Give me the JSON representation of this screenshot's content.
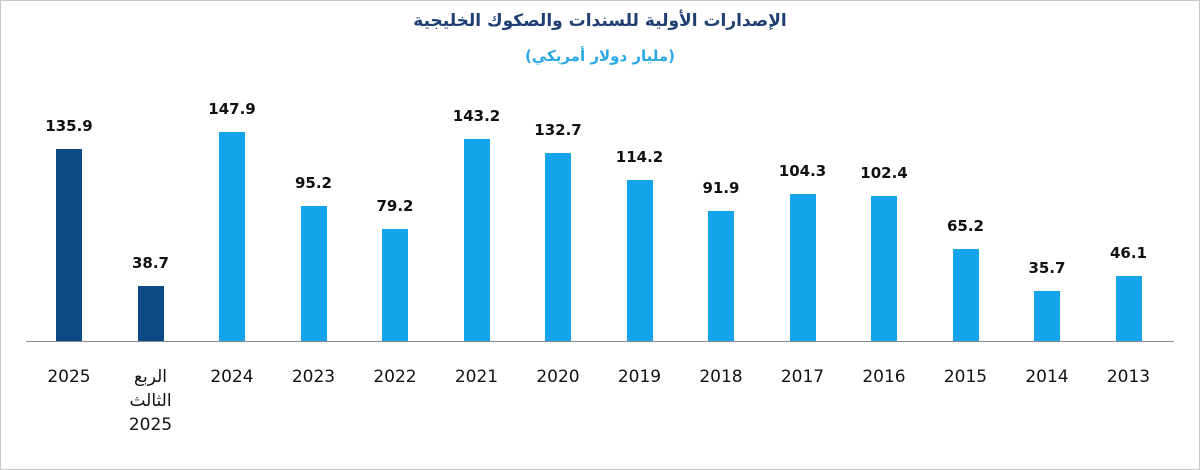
{
  "chart_data": {
    "type": "bar",
    "title": "الإصدارات الأولية للسندات والصكوك الخليجية",
    "subtitle": "(مليار دولار أمريكي)",
    "categories": [
      "2025",
      "الربع الثالث 2025",
      "2024",
      "2023",
      "2022",
      "2021",
      "2020",
      "2019",
      "2018",
      "2017",
      "2016",
      "2015",
      "2014",
      "2013"
    ],
    "values": [
      135.9,
      38.7,
      147.9,
      95.2,
      79.2,
      143.2,
      132.7,
      114.2,
      91.9,
      104.3,
      102.4,
      65.2,
      35.7,
      46.1
    ],
    "colors": [
      "#0b4a86",
      "#0b4a86",
      "#14a4ea",
      "#14a4ea",
      "#14a4ea",
      "#14a4ea",
      "#14a4ea",
      "#14a4ea",
      "#14a4ea",
      "#14a4ea",
      "#14a4ea",
      "#14a4ea",
      "#14a4ea",
      "#14a4ea"
    ]
  }
}
